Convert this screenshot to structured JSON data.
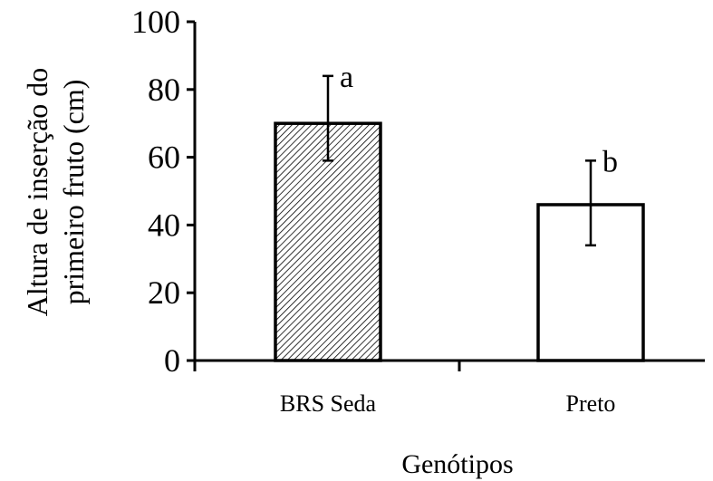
{
  "chart_data": {
    "type": "bar",
    "title": "",
    "xlabel": "Genótipos",
    "ylabel_lines": [
      "Altura de inserção do",
      "primeiro fruto (cm)"
    ],
    "categories": [
      "BRS Seda",
      "Preto"
    ],
    "series": [
      {
        "values": [
          70,
          46
        ],
        "error_low": [
          59,
          34
        ],
        "error_high": [
          84,
          59
        ],
        "significance": [
          "a",
          "b"
        ],
        "fills": [
          "hatched",
          "white"
        ]
      }
    ],
    "ylim": [
      0,
      100
    ],
    "yticks": [
      0,
      20,
      40,
      60,
      80,
      100
    ],
    "grid": false,
    "legend": "none"
  },
  "colors": {
    "axis": "#000000",
    "bar_outline": "#000000",
    "hatch": "#000000",
    "bar_plain_fill": "#ffffff"
  }
}
